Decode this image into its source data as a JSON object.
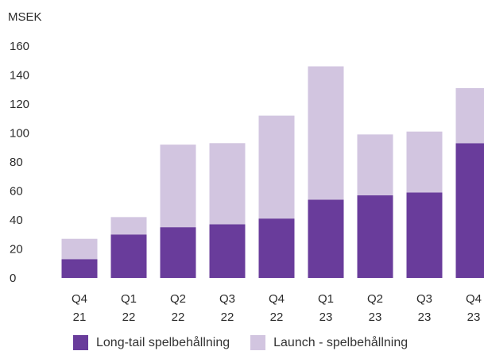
{
  "chart_data": {
    "type": "bar",
    "stacked": true,
    "unit_label": "MSEK",
    "categories": [
      [
        "Q4",
        "21"
      ],
      [
        "Q1",
        "22"
      ],
      [
        "Q2",
        "22"
      ],
      [
        "Q3",
        "22"
      ],
      [
        "Q4",
        "22"
      ],
      [
        "Q1",
        "23"
      ],
      [
        "Q2",
        "23"
      ],
      [
        "Q3",
        "23"
      ],
      [
        "Q4",
        "23"
      ]
    ],
    "yticks": [
      0,
      20,
      40,
      60,
      80,
      100,
      120,
      140,
      160
    ],
    "ylim": [
      0,
      160
    ],
    "grid": false,
    "legend_position": "bottom",
    "series": [
      {
        "name": "Long-tail spelbehållning",
        "color": "#693c9b",
        "values": [
          13,
          30,
          35,
          37,
          41,
          54,
          57,
          59,
          93
        ]
      },
      {
        "name": "Launch - spelbehållning",
        "color": "#d2c5e0",
        "values": [
          14,
          12,
          57,
          56,
          71,
          92,
          42,
          42,
          38
        ]
      }
    ]
  }
}
